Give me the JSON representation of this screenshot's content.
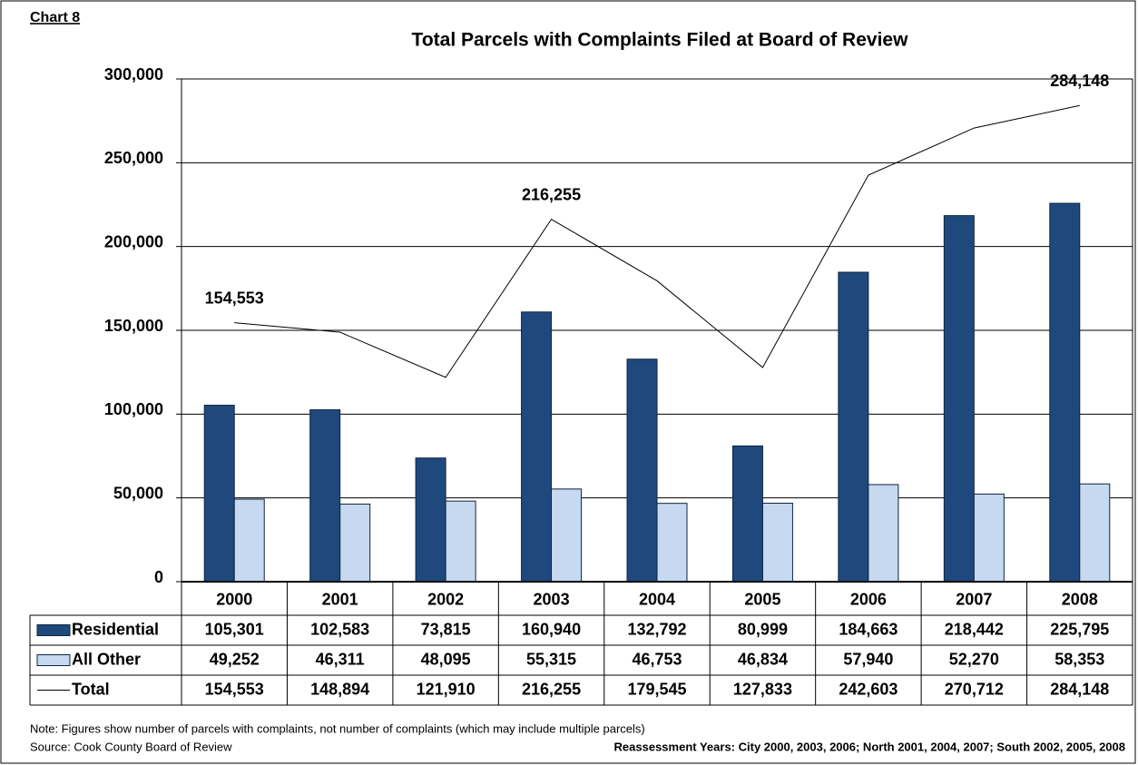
{
  "chart_data": {
    "type": "bar",
    "corner_label": "Chart 8",
    "title": "Total Parcels with Complaints Filed at Board of Review",
    "categories": [
      "2000",
      "2001",
      "2002",
      "2003",
      "2004",
      "2005",
      "2006",
      "2007",
      "2008"
    ],
    "series": [
      {
        "name": "Residential",
        "type": "bar",
        "color": "#1F497D",
        "values": [
          105301,
          102583,
          73815,
          160940,
          132792,
          80999,
          184663,
          218442,
          225795
        ],
        "value_labels": [
          "105,301",
          "102,583",
          "73,815",
          "160,940",
          "132,792",
          "80,999",
          "184,663",
          "218,442",
          "225,795"
        ]
      },
      {
        "name": "All Other",
        "type": "bar",
        "color": "#C6D9F1",
        "values": [
          49252,
          46311,
          48095,
          55315,
          46753,
          46834,
          57940,
          52270,
          58353
        ],
        "value_labels": [
          "49,252",
          "46,311",
          "48,095",
          "55,315",
          "46,753",
          "46,834",
          "57,940",
          "52,270",
          "58,353"
        ]
      },
      {
        "name": "Total",
        "type": "line",
        "color": "#000000",
        "values": [
          154553,
          148894,
          121910,
          216255,
          179545,
          127833,
          242603,
          270712,
          284148
        ],
        "value_labels": [
          "154,553",
          "148,894",
          "121,910",
          "216,255",
          "179,545",
          "127,833",
          "242,603",
          "270,712",
          "284,148"
        ],
        "labeled_points": [
          0,
          3,
          8
        ]
      }
    ],
    "ylim": [
      0,
      300000
    ],
    "yticks": [
      0,
      {
        "value": 50000,
        "label": "50,000"
      },
      {
        "value": 100000,
        "label": "100,000"
      },
      {
        "value": 150000,
        "label": "150,000"
      },
      {
        "value": 200000,
        "label": "200,000"
      },
      {
        "value": 250000,
        "label": "250,000"
      },
      {
        "value": 300000,
        "label": "300,000"
      }
    ],
    "grid": true,
    "note": "Note: Figures show number of parcels with complaints, not number of complaints (which may include  multiple parcels)",
    "source": "Source: Cook County Board of Review",
    "footnote": "Reassessment Years: City 2000, 2003, 2006; North 2001, 2004, 2007; South 2002, 2005, 2008"
  }
}
